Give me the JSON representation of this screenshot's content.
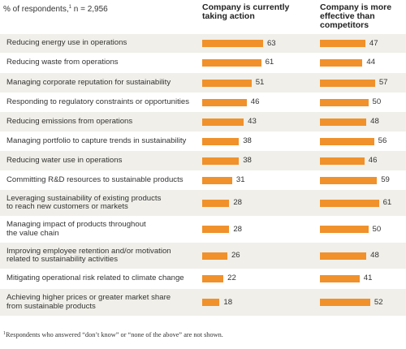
{
  "header": {
    "left_label": "% of respondents,",
    "left_footnote_marker": "1",
    "left_n": " n = 2,956"
  },
  "footnote": {
    "marker": "1",
    "text": "Respondents who answered “don’t know” or “none of the above” are not shown."
  },
  "colors": {
    "bar": "#f0912b",
    "row_band": "#f0efe9"
  },
  "chart_data": {
    "type": "bar",
    "orientation": "horizontal",
    "categories": [
      "Reducing energy use in operations",
      "Reducing waste from operations",
      "Managing corporate reputation for sustainability",
      "Responding to regulatory constraints or opportunities",
      "Reducing emissions from operations",
      "Managing portfolio to capture trends in sustainability",
      "Reducing water use in operations",
      "Committing R&D resources to sustainable products",
      "Leveraging sustainability of existing products\nto reach new customers or markets",
      "Managing impact of products throughout\nthe value chain",
      "Improving employee retention and/or motivation\nrelated to sustainability activities",
      "Mitigating operational risk related to climate change",
      "Achieving higher prices or greater market share\nfrom sustainable products"
    ],
    "series": [
      {
        "name": "Company is currently taking action",
        "values": [
          63,
          61,
          51,
          46,
          43,
          38,
          38,
          31,
          28,
          28,
          26,
          22,
          18
        ]
      },
      {
        "name": "Company is more effective than competitors",
        "values": [
          47,
          44,
          57,
          50,
          48,
          56,
          46,
          59,
          61,
          50,
          48,
          41,
          52
        ]
      }
    ]
  }
}
